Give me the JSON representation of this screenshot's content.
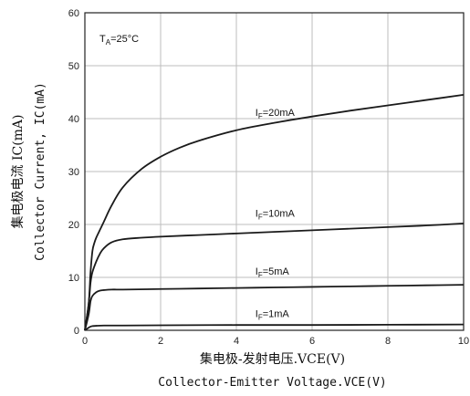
{
  "chart_data": {
    "type": "line",
    "xlim": [
      0,
      10
    ],
    "ylim": [
      0,
      60
    ],
    "x_ticks": [
      0,
      2,
      4,
      6,
      8,
      10
    ],
    "y_ticks": [
      0,
      10,
      20,
      30,
      40,
      50,
      60
    ],
    "grid": true,
    "xlabel": "集电极-发射电压.VCE(V)",
    "xlabel_en": "Collector-Emitter Voltage.VCE(V)",
    "ylabel": "集电极电流 IC(mA)",
    "ylabel_en": "Collector Current, IC(mA)",
    "annotation": {
      "main": "T",
      "sub": "A",
      "rest": "=25°C"
    },
    "series": [
      {
        "name": "IF=20mA",
        "label_main": "I",
        "label_sub": "F",
        "label_rest": "=20mA",
        "label_pos": [
          4.5,
          40.5
        ],
        "x": [
          0,
          0.1,
          0.15,
          0.2,
          0.25,
          0.3,
          0.4,
          0.5,
          0.7,
          1.0,
          1.5,
          2.0,
          2.5,
          3.0,
          4.0,
          5.0,
          6.0,
          7.0,
          8.0,
          9.0,
          10.0
        ],
        "y": [
          0,
          5,
          11,
          15,
          16.5,
          17.5,
          19,
          20.5,
          23.5,
          27,
          30.5,
          32.8,
          34.5,
          35.8,
          37.8,
          39.2,
          40.4,
          41.5,
          42.5,
          43.5,
          44.5
        ]
      },
      {
        "name": "IF=10mA",
        "label_main": "I",
        "label_sub": "F",
        "label_rest": "=10mA",
        "label_pos": [
          4.5,
          21.5
        ],
        "x": [
          0,
          0.1,
          0.15,
          0.2,
          0.3,
          0.4,
          0.5,
          0.7,
          1.0,
          1.5,
          2.0,
          3.0,
          4.0,
          5.0,
          6.0,
          7.0,
          8.0,
          9.0,
          10.0
        ],
        "y": [
          0,
          5,
          9,
          11,
          13,
          14.5,
          15.5,
          16.6,
          17.2,
          17.5,
          17.7,
          18.0,
          18.3,
          18.6,
          18.9,
          19.2,
          19.5,
          19.8,
          20.2
        ]
      },
      {
        "name": "IF=5mA",
        "label_main": "I",
        "label_sub": "F",
        "label_rest": "=5mA",
        "label_pos": [
          4.5,
          10.5
        ],
        "x": [
          0,
          0.1,
          0.15,
          0.2,
          0.3,
          0.4,
          0.5,
          0.7,
          1.0,
          2.0,
          3.0,
          4.0,
          5.0,
          6.0,
          7.0,
          8.0,
          9.0,
          10.0
        ],
        "y": [
          0,
          3,
          5.5,
          6.5,
          7.2,
          7.5,
          7.6,
          7.7,
          7.7,
          7.8,
          7.9,
          8.0,
          8.1,
          8.2,
          8.3,
          8.4,
          8.5,
          8.6
        ]
      },
      {
        "name": "IF=1mA",
        "label_main": "I",
        "label_sub": "F",
        "label_rest": "=1mA",
        "label_pos": [
          4.5,
          2.5
        ],
        "x": [
          0,
          0.1,
          0.15,
          0.2,
          0.3,
          0.5,
          1.0,
          2.0,
          4.0,
          6.0,
          8.0,
          10.0
        ],
        "y": [
          0,
          0.5,
          0.7,
          0.8,
          0.85,
          0.9,
          0.9,
          0.95,
          1.0,
          1.0,
          1.05,
          1.1
        ]
      }
    ]
  }
}
